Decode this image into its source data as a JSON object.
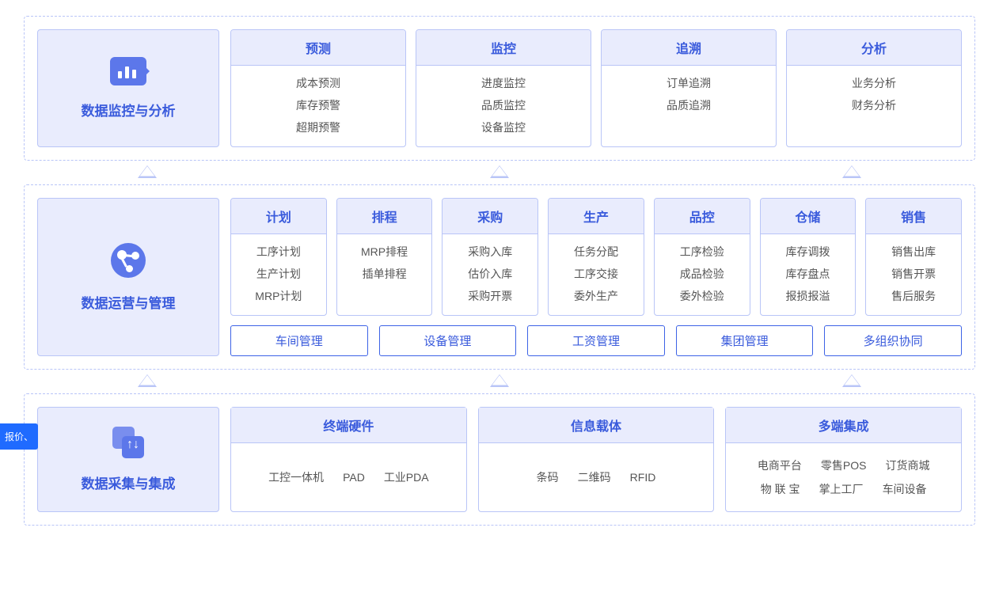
{
  "colors": {
    "primary_text": "#3a5bdc",
    "card_header_bg": "#e9ecfd",
    "border": "#b9c5f7",
    "body_text": "#555555",
    "icon_fill": "#5c77ea",
    "tag_border": "#3d63e6",
    "side_tab_bg": "#1f6bff"
  },
  "side_tab": "报价、",
  "layers": {
    "analysis": {
      "title": "数据监控与分析",
      "modules": [
        {
          "title": "预测",
          "items": [
            "成本预测",
            "库存预警",
            "超期预警"
          ]
        },
        {
          "title": "监控",
          "items": [
            "进度监控",
            "品质监控",
            "设备监控"
          ]
        },
        {
          "title": "追溯",
          "items": [
            "订单追溯",
            "品质追溯"
          ]
        },
        {
          "title": "分析",
          "items": [
            "业务分析",
            "财务分析"
          ]
        }
      ]
    },
    "ops": {
      "title": "数据运营与管理",
      "modules": [
        {
          "title": "计划",
          "items": [
            "工序计划",
            "生产计划",
            "MRP计划"
          ]
        },
        {
          "title": "排程",
          "items": [
            "MRP排程",
            "插单排程"
          ]
        },
        {
          "title": "采购",
          "items": [
            "采购入库",
            "估价入库",
            "采购开票"
          ]
        },
        {
          "title": "生产",
          "items": [
            "任务分配",
            "工序交接",
            "委外生产"
          ]
        },
        {
          "title": "品控",
          "items": [
            "工序检验",
            "成品检验",
            "委外检验"
          ]
        },
        {
          "title": "仓储",
          "items": [
            "库存调拨",
            "库存盘点",
            "报损报溢"
          ]
        },
        {
          "title": "销售",
          "items": [
            "销售出库",
            "销售开票",
            "售后服务"
          ]
        }
      ],
      "tags": [
        "车间管理",
        "设备管理",
        "工资管理",
        "集团管理",
        "多组织协同"
      ]
    },
    "collect": {
      "title": "数据采集与集成",
      "groups": [
        {
          "title": "终端硬件",
          "items": [
            "工控一体机",
            "PAD",
            "工业PDA"
          ]
        },
        {
          "title": "信息载体",
          "items": [
            "条码",
            "二维码",
            "RFID"
          ]
        },
        {
          "title": "多端集成",
          "items": [
            "电商平台",
            "零售POS",
            "订货商城",
            "物 联 宝",
            "掌上工厂",
            "车间设备"
          ]
        }
      ]
    }
  },
  "arrows": {
    "row1_positions_pct": [
      13,
      50,
      87
    ],
    "row2_positions_pct": [
      13,
      50,
      87
    ]
  }
}
